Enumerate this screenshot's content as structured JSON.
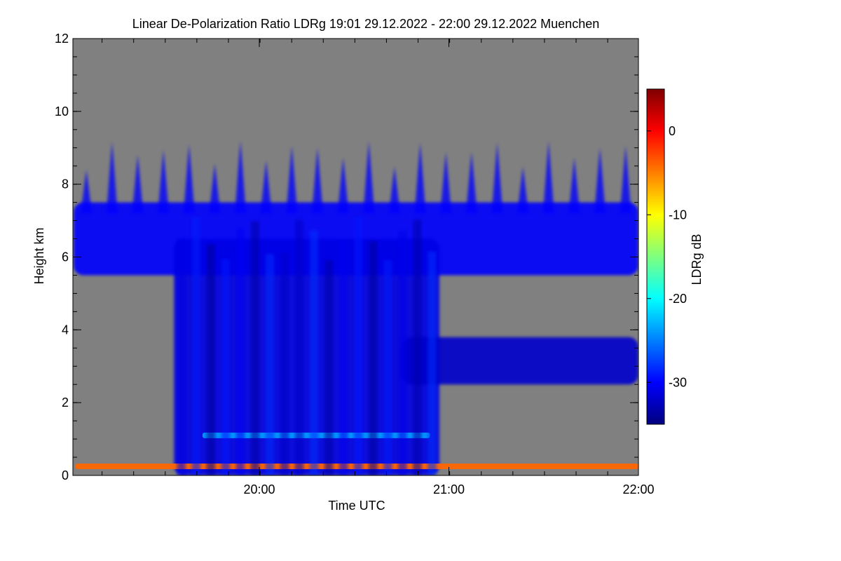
{
  "chart_data": {
    "type": "heatmap",
    "title": "Linear De-Polarization Ratio LDRg   19:01 29.12.2022 - 22:00 29.12.2022 Muenchen",
    "xlabel": "Time UTC",
    "ylabel": "Height km",
    "x_range_hours": [
      19.0167,
      22.0
    ],
    "y_range_km": [
      0,
      12
    ],
    "x_ticks": [
      {
        "value": 20.0,
        "label": "20:00"
      },
      {
        "value": 21.0,
        "label": "21:00"
      },
      {
        "value": 22.0,
        "label": "22:00"
      }
    ],
    "x_minor_step_hours": 0.1667,
    "y_ticks": [
      {
        "value": 0,
        "label": "0"
      },
      {
        "value": 2,
        "label": "2"
      },
      {
        "value": 4,
        "label": "4"
      },
      {
        "value": 6,
        "label": "6"
      },
      {
        "value": 8,
        "label": "8"
      },
      {
        "value": 10,
        "label": "10"
      },
      {
        "value": 12,
        "label": "12"
      }
    ],
    "y_minor_step_km": 0.5,
    "background_color": "#808080",
    "colorbar": {
      "label": "LDRg dB",
      "range": [
        -35,
        5
      ],
      "ticks": [
        {
          "value": 0,
          "label": "0"
        },
        {
          "value": -10,
          "label": "-10"
        },
        {
          "value": -20,
          "label": "-20"
        },
        {
          "value": -30,
          "label": "-30"
        }
      ],
      "colormap": [
        "#00007f",
        "#0000ff",
        "#007fff",
        "#00ffff",
        "#7fff7f",
        "#ffff00",
        "#ff7f00",
        "#ff0000",
        "#7f0000"
      ]
    },
    "features": [
      {
        "name": "upper cloud layer",
        "t_start": 19.02,
        "t_end": 22.0,
        "z_bottom_km": 5.5,
        "z_top_km": 7.5,
        "ldr_db": -30
      },
      {
        "name": "precipitation fall streaks",
        "t_start": 19.55,
        "t_end": 20.95,
        "z_bottom_km": 0.0,
        "z_top_km": 6.5,
        "ldr_db": -31
      },
      {
        "name": "melting layer",
        "t_start": 19.7,
        "t_end": 20.9,
        "z_km": 1.1,
        "ldr_db": -24
      },
      {
        "name": "mid-level layer",
        "t_start": 20.75,
        "t_end": 22.0,
        "z_bottom_km": 2.5,
        "z_top_km": 3.8,
        "ldr_db": -32
      },
      {
        "name": "surface noise line",
        "t_start": 19.03,
        "t_end": 22.0,
        "z_km": 0.25,
        "ldr_db": -4
      }
    ]
  }
}
